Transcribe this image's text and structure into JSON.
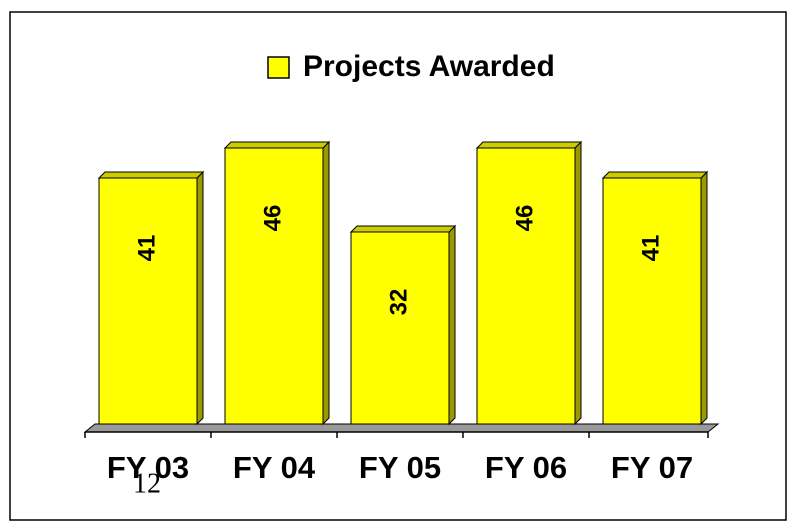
{
  "chart_data": {
    "type": "bar",
    "categories": [
      "FY 03",
      "FY 04",
      "FY 05",
      "FY 06",
      "FY 07"
    ],
    "series": [
      {
        "name": "Projects Awarded",
        "color": "#ffff00",
        "values": [
          41,
          46,
          32,
          46,
          41
        ]
      }
    ],
    "ylim": [
      0,
      50
    ],
    "annotations": [
      "12"
    ]
  }
}
